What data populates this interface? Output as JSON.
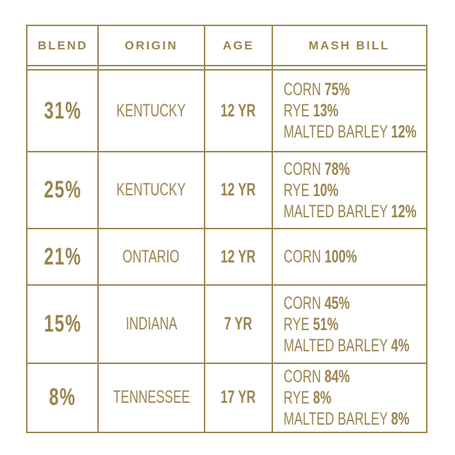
{
  "headers": [
    "BLEND",
    "ORIGIN",
    "AGE",
    "MASH BILL"
  ],
  "rows": [
    {
      "blend": "31%",
      "origin": "KENTUCKY",
      "age": "12 YR",
      "mash": [
        {
          "grain": "CORN",
          "pct": "75%"
        },
        {
          "grain": "RYE",
          "pct": "13%"
        },
        {
          "grain": "MALTED BARLEY",
          "pct": "12%"
        }
      ]
    },
    {
      "blend": "25%",
      "origin": "KENTUCKY",
      "age": "12 YR",
      "mash": [
        {
          "grain": "CORN",
          "pct": "78%"
        },
        {
          "grain": "RYE",
          "pct": "10%"
        },
        {
          "grain": "MALTED BARLEY",
          "pct": "12%"
        }
      ]
    },
    {
      "blend": "21%",
      "origin": "ONTARIO",
      "age": "12 YR",
      "mash": [
        {
          "grain": "CORN",
          "pct": "100%"
        }
      ]
    },
    {
      "blend": "15%",
      "origin": "INDIANA",
      "age": "7 YR",
      "mash": [
        {
          "grain": "CORN",
          "pct": "45%"
        },
        {
          "grain": "RYE",
          "pct": "51%"
        },
        {
          "grain": "MALTED BARLEY",
          "pct": "4%"
        }
      ]
    },
    {
      "blend": "8%",
      "origin": "TENNESSEE",
      "age": "17 YR",
      "mash": [
        {
          "grain": "CORN",
          "pct": "84%"
        },
        {
          "grain": "RYE",
          "pct": "8%"
        },
        {
          "grain": "MALTED BARLEY",
          "pct": "8%"
        }
      ]
    }
  ],
  "colors": {
    "gold": "#9a8450"
  }
}
